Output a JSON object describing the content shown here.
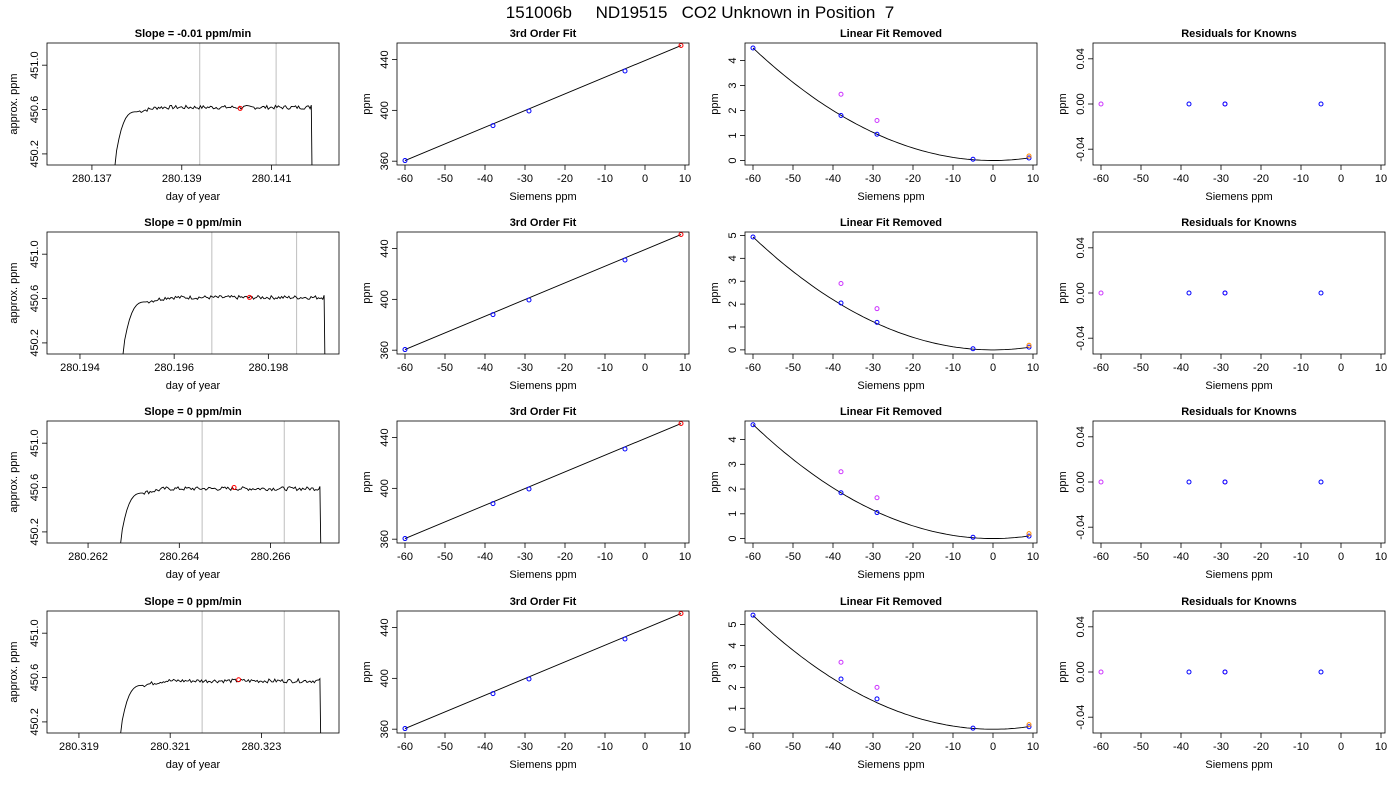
{
  "page": {
    "title": "151006b     ND19515   CO2 Unknown in Position  7"
  },
  "colors": {
    "frame": "#000000",
    "line": "#000000",
    "vline": "#bebebe",
    "blue": "#0000ff",
    "red": "#ff0000",
    "orange": "#ff8c00",
    "magenta": "#cc33ff"
  },
  "chart_data": [
    {
      "row": 1,
      "type": "line",
      "title": "Slope =  -0.01  ppm/min",
      "xlabel": "day of year",
      "ylabel": "approx. ppm",
      "xlim": [
        280.136,
        280.1425
      ],
      "ylim": [
        450.1,
        451.2
      ],
      "xticks": [
        280.137,
        280.139,
        280.141
      ],
      "xtick_labels": [
        "280.137",
        "280.139",
        "280.141"
      ],
      "yticks": [
        450.2,
        450.6,
        451.0
      ],
      "ytick_labels": [
        "450.2",
        "450.6",
        "451.0"
      ],
      "trace": {
        "start": 280.1375,
        "end": 280.1419,
        "rise_end": 280.138,
        "level": 450.62
      },
      "vlines": [
        280.1394,
        280.1411
      ],
      "red_point": {
        "x": 280.1403,
        "y": 450.61
      }
    },
    {
      "row": 2,
      "type": "line",
      "title": "Slope =  0  ppm/min",
      "xlabel": "day of year",
      "ylabel": "approx. ppm",
      "xlim": [
        280.1933,
        280.1995
      ],
      "ylim": [
        450.1,
        451.2
      ],
      "xticks": [
        280.194,
        280.196,
        280.198
      ],
      "xtick_labels": [
        "280.194",
        "280.196",
        "280.198"
      ],
      "yticks": [
        450.2,
        450.6,
        451.0
      ],
      "ytick_labels": [
        "450.2",
        "450.6",
        "451.0"
      ],
      "trace": {
        "start": 280.1949,
        "end": 280.1992,
        "rise_end": 280.1954,
        "level": 450.61
      },
      "vlines": [
        280.1968,
        280.1986
      ],
      "red_point": {
        "x": 280.1976,
        "y": 450.61
      }
    },
    {
      "row": 3,
      "type": "line",
      "title": "Slope =  0  ppm/min",
      "xlabel": "day of year",
      "ylabel": "approx. ppm",
      "xlim": [
        280.2611,
        280.2675
      ],
      "ylim": [
        450.1,
        451.2
      ],
      "xticks": [
        280.262,
        280.264,
        280.266
      ],
      "xtick_labels": [
        "280.262",
        "280.264",
        "280.266"
      ],
      "yticks": [
        450.2,
        450.6,
        451.0
      ],
      "ytick_labels": [
        "450.2",
        "450.6",
        "451.0"
      ],
      "trace": {
        "start": 280.2627,
        "end": 280.2671,
        "rise_end": 280.2632,
        "level": 450.59
      },
      "vlines": [
        280.2645,
        280.2663
      ],
      "red_point": {
        "x": 280.2652,
        "y": 450.6
      }
    },
    {
      "row": 4,
      "type": "line",
      "title": "Slope =  0  ppm/min",
      "xlabel": "day of year",
      "ylabel": "approx. ppm",
      "xlim": [
        280.3183,
        280.3247
      ],
      "ylim": [
        450.1,
        451.2
      ],
      "xticks": [
        280.319,
        280.321,
        280.323
      ],
      "xtick_labels": [
        "280.319",
        "280.321",
        "280.323"
      ],
      "yticks": [
        450.2,
        450.6,
        451.0
      ],
      "ytick_labels": [
        "450.2",
        "450.6",
        "451.0"
      ],
      "trace": {
        "start": 280.3199,
        "end": 280.3243,
        "rise_end": 280.3204,
        "level": 450.57
      },
      "vlines": [
        280.3217,
        280.3235
      ],
      "red_point": {
        "x": 280.3225,
        "y": 450.58
      }
    },
    {
      "row": 1,
      "type": "scatter",
      "title": "3rd Order Fit",
      "xlabel": "Siemens ppm",
      "ylabel": "ppm",
      "xlim": [
        -62,
        11
      ],
      "ylim": [
        357,
        453
      ],
      "xticks": [
        -60,
        -50,
        -40,
        -30,
        -20,
        -10,
        0,
        10
      ],
      "xtick_labels": [
        "-60",
        "-50",
        "-40",
        "-30",
        "-20",
        "-10",
        "0",
        "10"
      ],
      "yticks": [
        360,
        400,
        440
      ],
      "ytick_labels": [
        "360",
        "400",
        "440"
      ],
      "fit_line": [
        [
          -60,
          360.5
        ],
        [
          9,
          451
        ]
      ],
      "points": [
        {
          "x": -60,
          "y": 360.5,
          "color": "blue"
        },
        {
          "x": -38,
          "y": 388,
          "color": "blue"
        },
        {
          "x": -29,
          "y": 399.5,
          "color": "blue"
        },
        {
          "x": -5,
          "y": 431,
          "color": "blue"
        },
        {
          "x": 9,
          "y": 451,
          "color": "red"
        }
      ]
    },
    {
      "row": 2,
      "type": "scatter",
      "title": "3rd Order Fit",
      "xlabel": "Siemens ppm",
      "ylabel": "ppm",
      "xlim": [
        -62,
        11
      ],
      "ylim": [
        357,
        453
      ],
      "xticks": [
        -60,
        -50,
        -40,
        -30,
        -20,
        -10,
        0,
        10
      ],
      "xtick_labels": [
        "-60",
        "-50",
        "-40",
        "-30",
        "-20",
        "-10",
        "0",
        "10"
      ],
      "yticks": [
        360,
        400,
        440
      ],
      "ytick_labels": [
        "360",
        "400",
        "440"
      ],
      "fit_line": [
        [
          -60,
          360.5
        ],
        [
          9,
          451
        ]
      ],
      "points": [
        {
          "x": -60,
          "y": 360.5,
          "color": "blue"
        },
        {
          "x": -38,
          "y": 388,
          "color": "blue"
        },
        {
          "x": -29,
          "y": 399.5,
          "color": "blue"
        },
        {
          "x": -5,
          "y": 431,
          "color": "blue"
        },
        {
          "x": 9,
          "y": 451,
          "color": "red"
        }
      ]
    },
    {
      "row": 3,
      "type": "scatter",
      "title": "3rd Order Fit",
      "xlabel": "Siemens ppm",
      "ylabel": "ppm",
      "xlim": [
        -62,
        11
      ],
      "ylim": [
        357,
        453
      ],
      "xticks": [
        -60,
        -50,
        -40,
        -30,
        -20,
        -10,
        0,
        10
      ],
      "xtick_labels": [
        "-60",
        "-50",
        "-40",
        "-30",
        "-20",
        "-10",
        "0",
        "10"
      ],
      "yticks": [
        360,
        400,
        440
      ],
      "ytick_labels": [
        "360",
        "400",
        "440"
      ],
      "fit_line": [
        [
          -60,
          360.5
        ],
        [
          9,
          451
        ]
      ],
      "points": [
        {
          "x": -60,
          "y": 360.5,
          "color": "blue"
        },
        {
          "x": -38,
          "y": 388,
          "color": "blue"
        },
        {
          "x": -29,
          "y": 399.5,
          "color": "blue"
        },
        {
          "x": -5,
          "y": 431,
          "color": "blue"
        },
        {
          "x": 9,
          "y": 451,
          "color": "red"
        }
      ]
    },
    {
      "row": 4,
      "type": "scatter",
      "title": "3rd Order Fit",
      "xlabel": "Siemens ppm",
      "ylabel": "ppm",
      "xlim": [
        -62,
        11
      ],
      "ylim": [
        357,
        453
      ],
      "xticks": [
        -60,
        -50,
        -40,
        -30,
        -20,
        -10,
        0,
        10
      ],
      "xtick_labels": [
        "-60",
        "-50",
        "-40",
        "-30",
        "-20",
        "-10",
        "0",
        "10"
      ],
      "yticks": [
        360,
        400,
        440
      ],
      "ytick_labels": [
        "360",
        "400",
        "440"
      ],
      "fit_line": [
        [
          -60,
          360.5
        ],
        [
          9,
          451
        ]
      ],
      "points": [
        {
          "x": -60,
          "y": 360.5,
          "color": "blue"
        },
        {
          "x": -38,
          "y": 388,
          "color": "blue"
        },
        {
          "x": -29,
          "y": 399.5,
          "color": "blue"
        },
        {
          "x": -5,
          "y": 431,
          "color": "blue"
        },
        {
          "x": 9,
          "y": 451,
          "color": "red"
        }
      ]
    },
    {
      "row": 1,
      "type": "scatter",
      "title": "Linear Fit Removed",
      "xlabel": "Siemens ppm",
      "ylabel": "ppm",
      "xlim": [
        -62,
        11
      ],
      "ylim": [
        -0.18,
        4.7
      ],
      "xticks": [
        -60,
        -50,
        -40,
        -30,
        -20,
        -10,
        0,
        10
      ],
      "xtick_labels": [
        "-60",
        "-50",
        "-40",
        "-30",
        "-20",
        "-10",
        "0",
        "10"
      ],
      "yticks": [
        0,
        1,
        2,
        3,
        4
      ],
      "ytick_labels": [
        "0",
        "1",
        "2",
        "3",
        "4"
      ],
      "curve": {
        "a": 0.00125,
        "vertex": 0,
        "x_from": -60,
        "x_to": 9
      },
      "points": [
        {
          "x": -60,
          "y": 4.5,
          "color": "blue"
        },
        {
          "x": -38,
          "y": 1.8,
          "color": "blue"
        },
        {
          "x": -29,
          "y": 1.05,
          "color": "blue"
        },
        {
          "x": -5,
          "y": 0.05,
          "color": "blue"
        },
        {
          "x": 9,
          "y": 0.1,
          "color": "blue"
        },
        {
          "x": -38,
          "y": 2.65,
          "color": "magenta"
        },
        {
          "x": -29,
          "y": 1.6,
          "color": "magenta"
        },
        {
          "x": 9,
          "y": 0.18,
          "color": "orange"
        }
      ]
    },
    {
      "row": 2,
      "type": "scatter",
      "title": "Linear Fit Removed",
      "xlabel": "Siemens ppm",
      "ylabel": "ppm",
      "xlim": [
        -62,
        11
      ],
      "ylim": [
        -0.18,
        5.15
      ],
      "xticks": [
        -60,
        -50,
        -40,
        -30,
        -20,
        -10,
        0,
        10
      ],
      "xtick_labels": [
        "-60",
        "-50",
        "-40",
        "-30",
        "-20",
        "-10",
        "0",
        "10"
      ],
      "yticks": [
        0,
        1,
        2,
        3,
        4,
        5
      ],
      "ytick_labels": [
        "0",
        "1",
        "2",
        "3",
        "4",
        "5"
      ],
      "curve": {
        "a": 0.00137,
        "vertex": 0,
        "x_from": -60,
        "x_to": 9
      },
      "points": [
        {
          "x": -60,
          "y": 4.93,
          "color": "blue"
        },
        {
          "x": -38,
          "y": 2.05,
          "color": "blue"
        },
        {
          "x": -29,
          "y": 1.2,
          "color": "blue"
        },
        {
          "x": -5,
          "y": 0.05,
          "color": "blue"
        },
        {
          "x": 9,
          "y": 0.12,
          "color": "blue"
        },
        {
          "x": -38,
          "y": 2.9,
          "color": "magenta"
        },
        {
          "x": -29,
          "y": 1.8,
          "color": "magenta"
        },
        {
          "x": 9,
          "y": 0.2,
          "color": "orange"
        }
      ]
    },
    {
      "row": 3,
      "type": "scatter",
      "title": "Linear Fit Removed",
      "xlabel": "Siemens ppm",
      "ylabel": "ppm",
      "xlim": [
        -62,
        11
      ],
      "ylim": [
        -0.18,
        4.75
      ],
      "xticks": [
        -60,
        -50,
        -40,
        -30,
        -20,
        -10,
        0,
        10
      ],
      "xtick_labels": [
        "-60",
        "-50",
        "-40",
        "-30",
        "-20",
        "-10",
        "0",
        "10"
      ],
      "yticks": [
        0,
        1,
        2,
        3,
        4
      ],
      "ytick_labels": [
        "0",
        "1",
        "2",
        "3",
        "4"
      ],
      "curve": {
        "a": 0.00128,
        "vertex": 0,
        "x_from": -60,
        "x_to": 9
      },
      "points": [
        {
          "x": -60,
          "y": 4.6,
          "color": "blue"
        },
        {
          "x": -38,
          "y": 1.85,
          "color": "blue"
        },
        {
          "x": -29,
          "y": 1.05,
          "color": "blue"
        },
        {
          "x": -5,
          "y": 0.05,
          "color": "blue"
        },
        {
          "x": 9,
          "y": 0.1,
          "color": "blue"
        },
        {
          "x": -38,
          "y": 2.7,
          "color": "magenta"
        },
        {
          "x": -29,
          "y": 1.65,
          "color": "magenta"
        },
        {
          "x": 9,
          "y": 0.2,
          "color": "orange"
        }
      ]
    },
    {
      "row": 4,
      "type": "scatter",
      "title": "Linear Fit Removed",
      "xlabel": "Siemens ppm",
      "ylabel": "ppm",
      "xlim": [
        -62,
        11
      ],
      "ylim": [
        -0.18,
        5.65
      ],
      "xticks": [
        -60,
        -50,
        -40,
        -30,
        -20,
        -10,
        0,
        10
      ],
      "xtick_labels": [
        "-60",
        "-50",
        "-40",
        "-30",
        "-20",
        "-10",
        "0",
        "10"
      ],
      "yticks": [
        0,
        1,
        2,
        3,
        4,
        5
      ],
      "ytick_labels": [
        "0",
        "1",
        "2",
        "3",
        "4",
        "5"
      ],
      "curve": {
        "a": 0.00151,
        "vertex": 0,
        "x_from": -60,
        "x_to": 9
      },
      "points": [
        {
          "x": -60,
          "y": 5.45,
          "color": "blue"
        },
        {
          "x": -38,
          "y": 2.4,
          "color": "blue"
        },
        {
          "x": -29,
          "y": 1.45,
          "color": "blue"
        },
        {
          "x": -5,
          "y": 0.05,
          "color": "blue"
        },
        {
          "x": 9,
          "y": 0.12,
          "color": "blue"
        },
        {
          "x": -38,
          "y": 3.2,
          "color": "magenta"
        },
        {
          "x": -29,
          "y": 2.0,
          "color": "magenta"
        },
        {
          "x": 9,
          "y": 0.22,
          "color": "orange"
        }
      ]
    },
    {
      "row": 1,
      "type": "scatter",
      "title": "Residuals for Knowns",
      "xlabel": "Siemens ppm",
      "ylabel": "ppm",
      "xlim": [
        -62,
        11
      ],
      "ylim": [
        -0.054,
        0.054
      ],
      "xticks": [
        -60,
        -50,
        -40,
        -30,
        -20,
        -10,
        0,
        10
      ],
      "xtick_labels": [
        "-60",
        "-50",
        "-40",
        "-30",
        "-20",
        "-10",
        "0",
        "10"
      ],
      "yticks": [
        -0.04,
        0,
        0.04
      ],
      "ytick_labels": [
        "-0.04",
        "0.00",
        "0.04"
      ],
      "points": [
        {
          "x": -60,
          "y": 0,
          "color": "magenta"
        },
        {
          "x": -38,
          "y": 0,
          "color": "blue"
        },
        {
          "x": -29,
          "y": 0,
          "color": "magenta"
        },
        {
          "x": -29,
          "y": 0,
          "color": "blue"
        },
        {
          "x": -5,
          "y": 0,
          "color": "blue"
        }
      ]
    },
    {
      "row": 2,
      "type": "scatter",
      "title": "Residuals for Knowns",
      "xlabel": "Siemens ppm",
      "ylabel": "ppm",
      "xlim": [
        -62,
        11
      ],
      "ylim": [
        -0.054,
        0.054
      ],
      "xticks": [
        -60,
        -50,
        -40,
        -30,
        -20,
        -10,
        0,
        10
      ],
      "xtick_labels": [
        "-60",
        "-50",
        "-40",
        "-30",
        "-20",
        "-10",
        "0",
        "10"
      ],
      "yticks": [
        -0.04,
        0,
        0.04
      ],
      "ytick_labels": [
        "-0.04",
        "0.00",
        "0.04"
      ],
      "points": [
        {
          "x": -60,
          "y": 0,
          "color": "magenta"
        },
        {
          "x": -38,
          "y": 0,
          "color": "blue"
        },
        {
          "x": -29,
          "y": 0,
          "color": "magenta"
        },
        {
          "x": -29,
          "y": 0,
          "color": "blue"
        },
        {
          "x": -5,
          "y": 0,
          "color": "blue"
        }
      ]
    },
    {
      "row": 3,
      "type": "scatter",
      "title": "Residuals for Knowns",
      "xlabel": "Siemens ppm",
      "ylabel": "ppm",
      "xlim": [
        -62,
        11
      ],
      "ylim": [
        -0.054,
        0.054
      ],
      "xticks": [
        -60,
        -50,
        -40,
        -30,
        -20,
        -10,
        0,
        10
      ],
      "xtick_labels": [
        "-60",
        "-50",
        "-40",
        "-30",
        "-20",
        "-10",
        "0",
        "10"
      ],
      "yticks": [
        -0.04,
        0,
        0.04
      ],
      "ytick_labels": [
        "-0.04",
        "0.00",
        "0.04"
      ],
      "points": [
        {
          "x": -60,
          "y": 0,
          "color": "magenta"
        },
        {
          "x": -38,
          "y": 0,
          "color": "blue"
        },
        {
          "x": -29,
          "y": 0,
          "color": "magenta"
        },
        {
          "x": -29,
          "y": 0,
          "color": "blue"
        },
        {
          "x": -5,
          "y": 0,
          "color": "blue"
        }
      ]
    },
    {
      "row": 4,
      "type": "scatter",
      "title": "Residuals for Knowns",
      "xlabel": "Siemens ppm",
      "ylabel": "ppm",
      "xlim": [
        -62,
        11
      ],
      "ylim": [
        -0.054,
        0.054
      ],
      "xticks": [
        -60,
        -50,
        -40,
        -30,
        -20,
        -10,
        0,
        10
      ],
      "xtick_labels": [
        "-60",
        "-50",
        "-40",
        "-30",
        "-20",
        "-10",
        "0",
        "10"
      ],
      "yticks": [
        -0.04,
        0,
        0.04
      ],
      "ytick_labels": [
        "-0.04",
        "0.00",
        "0.04"
      ],
      "points": [
        {
          "x": -60,
          "y": 0,
          "color": "magenta"
        },
        {
          "x": -38,
          "y": 0,
          "color": "blue"
        },
        {
          "x": -29,
          "y": 0,
          "color": "magenta"
        },
        {
          "x": -29,
          "y": 0,
          "color": "blue"
        },
        {
          "x": -5,
          "y": 0,
          "color": "blue"
        }
      ]
    }
  ]
}
